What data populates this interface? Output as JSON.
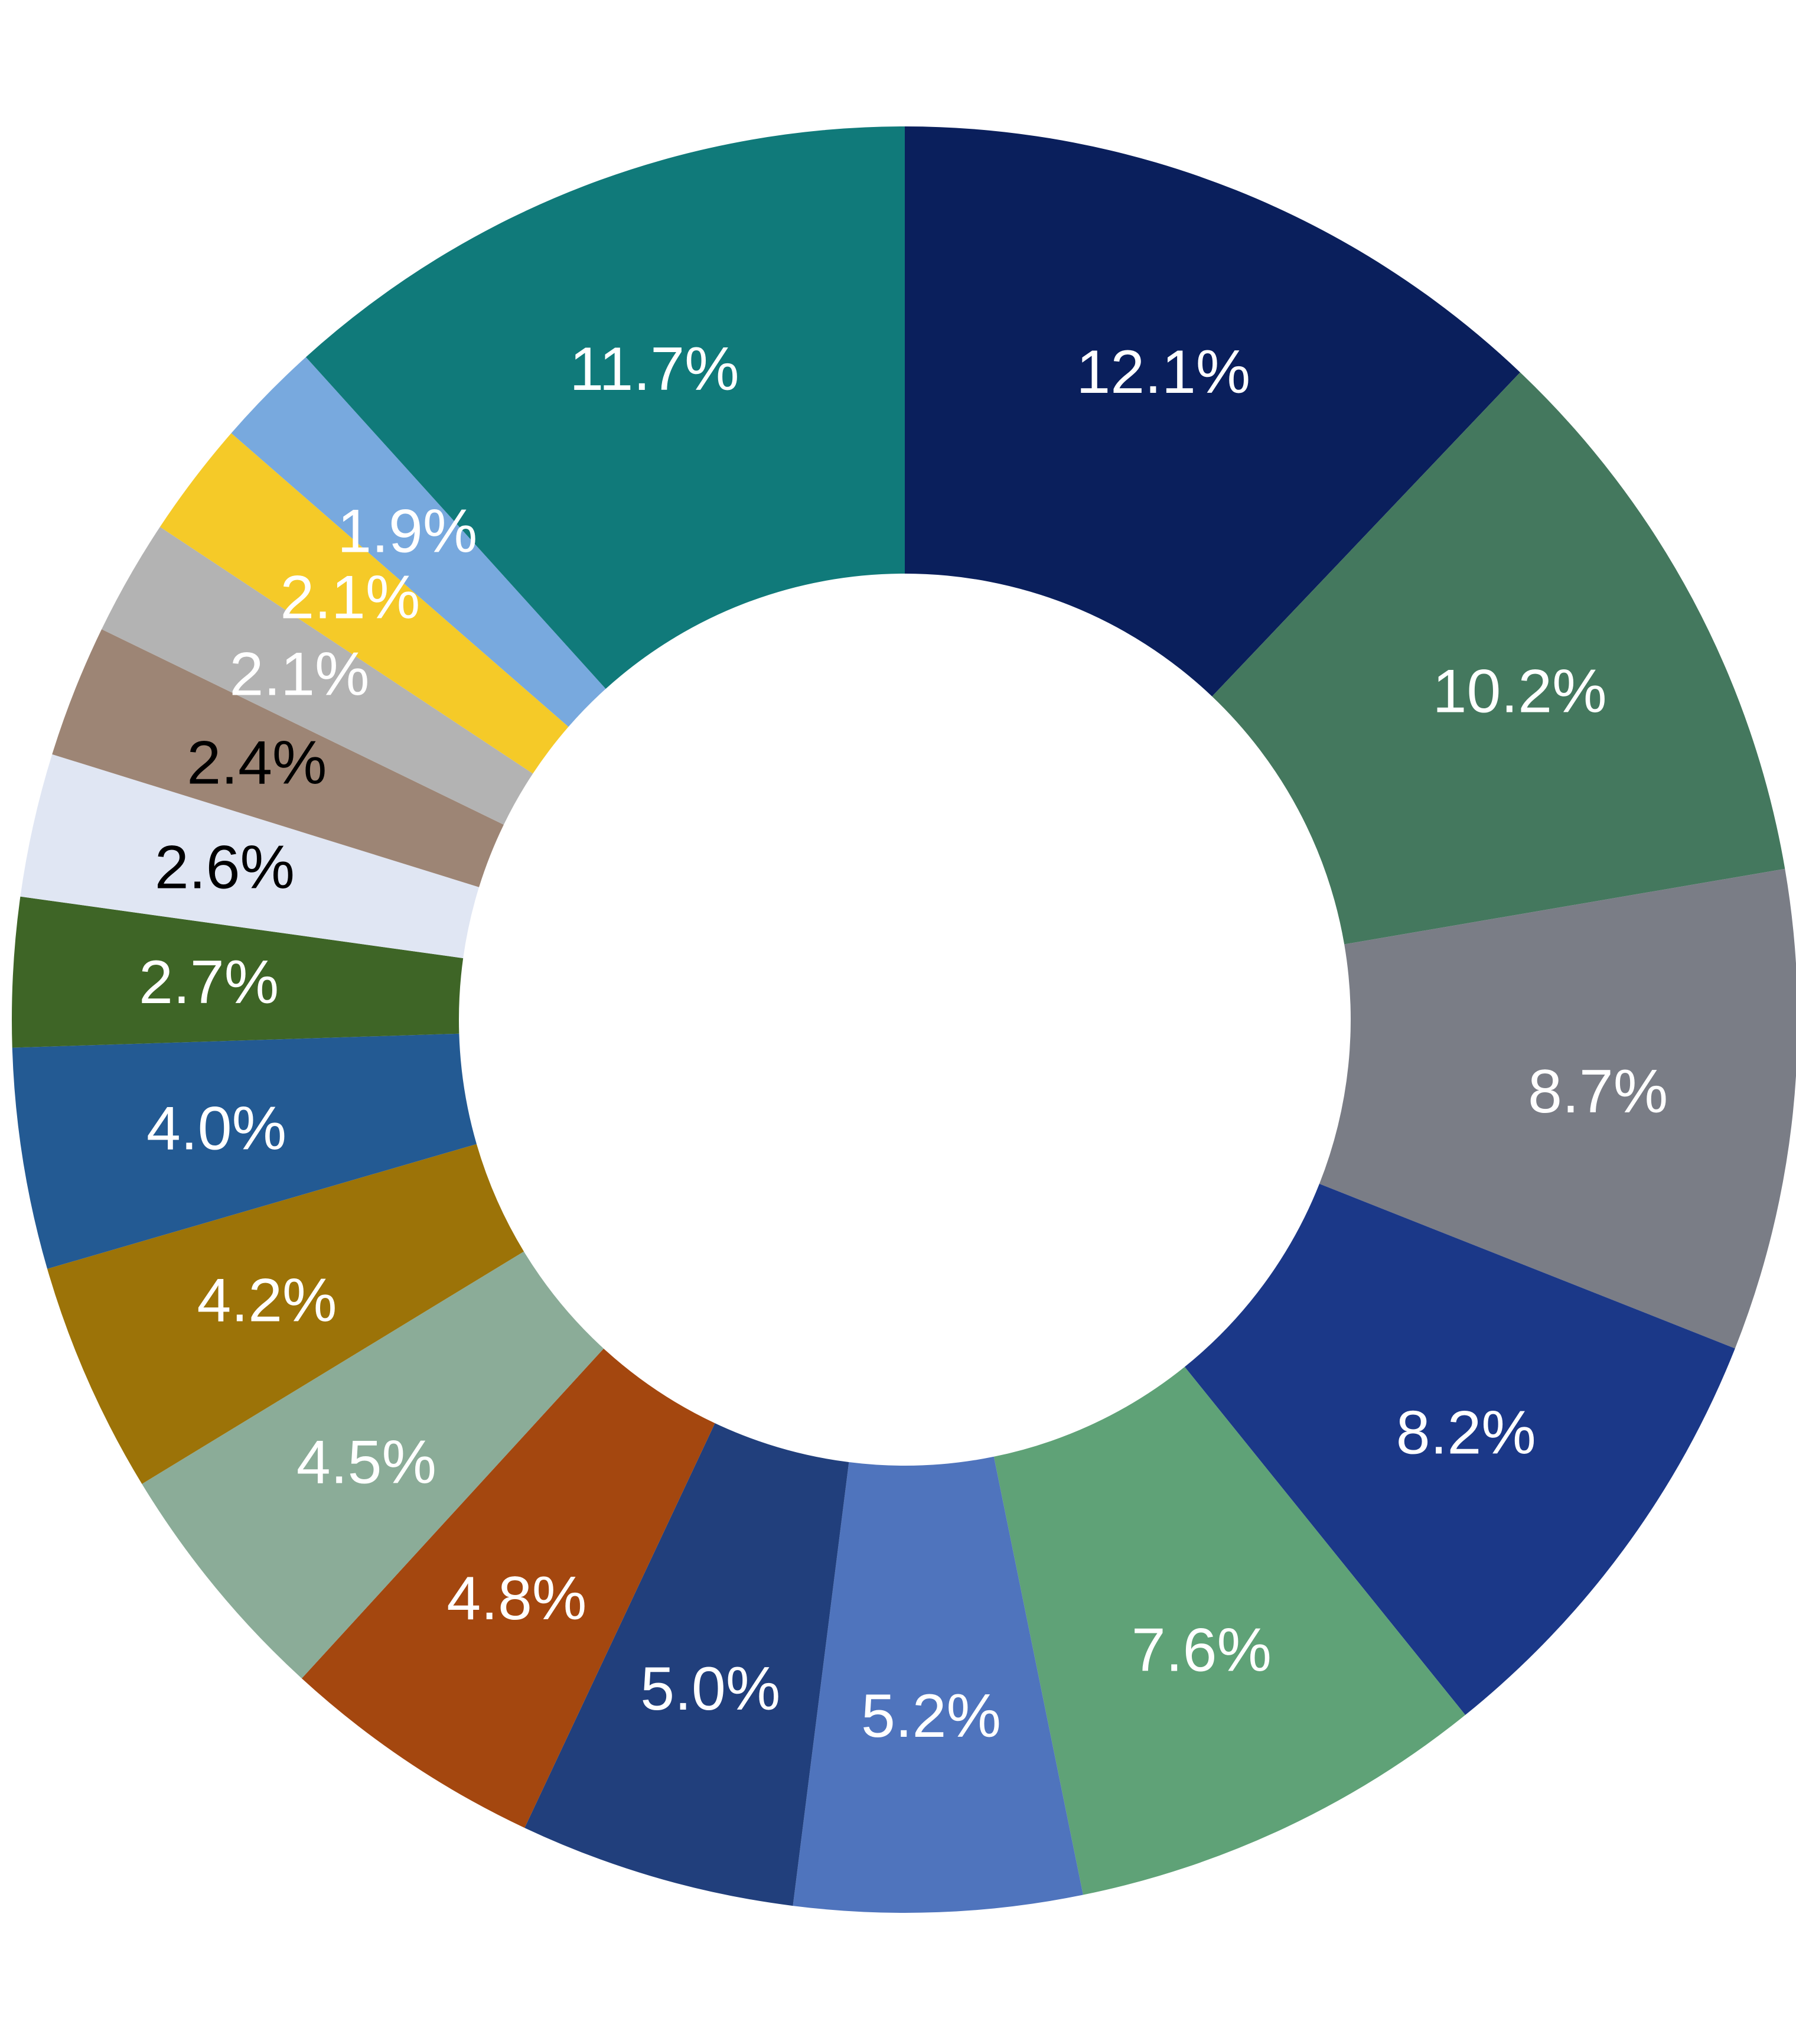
{
  "chart_data": {
    "type": "pie",
    "variant": "donut",
    "start_angle_deg": 0,
    "direction": "clockwise",
    "value_unit": "%",
    "slices": [
      {
        "label": "12.1%",
        "value": 12.1,
        "color": "#0a1f5c",
        "label_color": "#ffffff"
      },
      {
        "label": "10.2%",
        "value": 10.2,
        "color": "#44785e",
        "label_color": "#ffffff"
      },
      {
        "label": "8.7%",
        "value": 8.7,
        "color": "#7a7d86",
        "label_color": "#ffffff"
      },
      {
        "label": "8.2%",
        "value": 8.2,
        "color": "#1b3888",
        "label_color": "#ffffff"
      },
      {
        "label": "7.6%",
        "value": 7.6,
        "color": "#5fa277",
        "label_color": "#ffffff"
      },
      {
        "label": "5.2%",
        "value": 5.2,
        "color": "#4f74bd",
        "label_color": "#ffffff"
      },
      {
        "label": "5.0%",
        "value": 5.0,
        "color": "#213f7c",
        "label_color": "#ffffff"
      },
      {
        "label": "4.8%",
        "value": 4.8,
        "color": "#a4470f",
        "label_color": "#ffffff"
      },
      {
        "label": "4.5%",
        "value": 4.5,
        "color": "#8bac98",
        "label_color": "#ffffff"
      },
      {
        "label": "4.2%",
        "value": 4.2,
        "color": "#9c7308",
        "label_color": "#ffffff"
      },
      {
        "label": "4.0%",
        "value": 4.0,
        "color": "#235a93",
        "label_color": "#ffffff"
      },
      {
        "label": "2.7%",
        "value": 2.7,
        "color": "#3e6526",
        "label_color": "#ffffff"
      },
      {
        "label": "2.6%",
        "value": 2.6,
        "color": "#e0e6f3",
        "label_color": "#000000"
      },
      {
        "label": "2.4%",
        "value": 2.4,
        "color": "#9d8575",
        "label_color": "#000000"
      },
      {
        "label": "2.1%",
        "value": 2.1,
        "color": "#b3b3b3",
        "label_color": "#ffffff"
      },
      {
        "label": "2.1%",
        "value": 2.1,
        "color": "#f5ca28",
        "label_color": "#ffffff"
      },
      {
        "label": "1.9%",
        "value": 1.9,
        "color": "#78a9de",
        "label_color": "#ffffff"
      },
      {
        "label": "11.7%",
        "value": 11.7,
        "color": "#107a7a",
        "label_color": "#ffffff"
      }
    ]
  }
}
